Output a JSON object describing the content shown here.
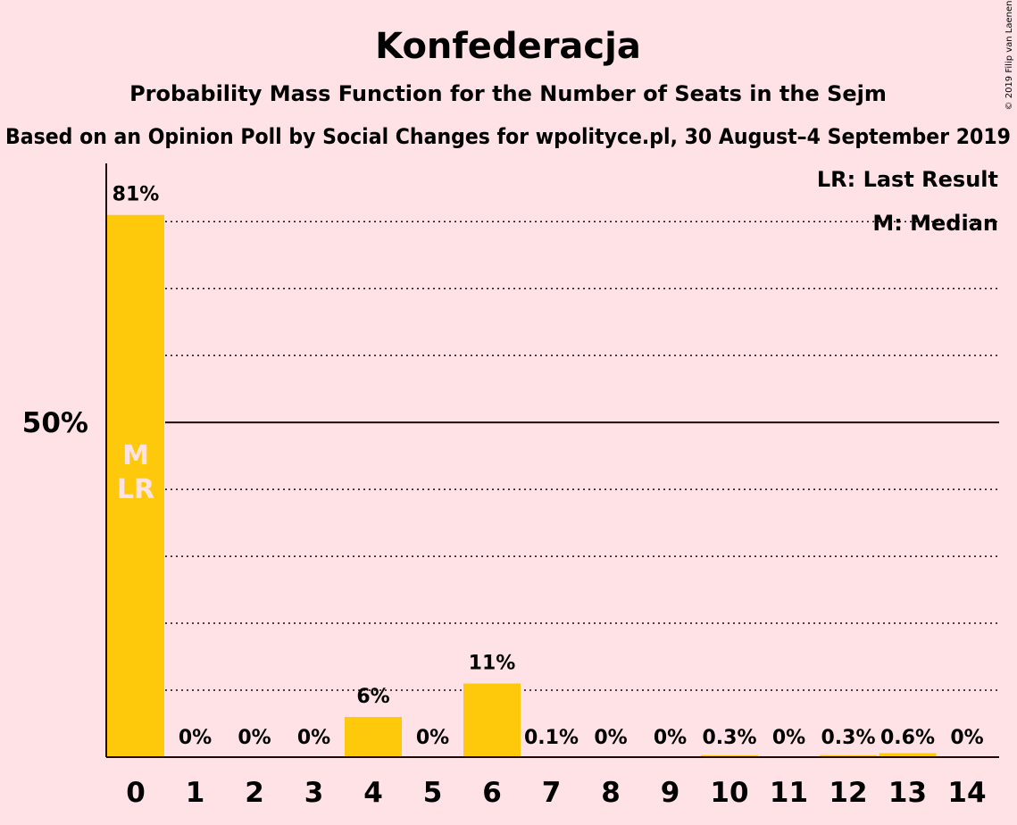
{
  "title": "Konfederacja",
  "subtitle1": "Probability Mass Function for the Number of Seats in the Sejm",
  "subtitle2": "Based on an Opinion Poll by Social Changes for wpolityce.pl, 30 August–4 September 2019",
  "copyright": "© 2019 Filip van Laenen",
  "legend": {
    "last_result": "LR: Last Result",
    "median": "M: Median"
  },
  "colors": {
    "background": "#ffe2e5",
    "bar": "#ffc90b",
    "text": "#1c0a0c"
  },
  "chart_data": {
    "type": "bar",
    "categories": [
      "0",
      "1",
      "2",
      "3",
      "4",
      "5",
      "6",
      "7",
      "8",
      "9",
      "10",
      "11",
      "12",
      "13",
      "14"
    ],
    "values": [
      81,
      0,
      0,
      0,
      6,
      0,
      11,
      0.1,
      0,
      0,
      0.3,
      0,
      0.3,
      0.6,
      0
    ],
    "value_labels": [
      "81%",
      "0%",
      "0%",
      "0%",
      "6%",
      "0%",
      "11%",
      "0.1%",
      "0%",
      "0%",
      "0.3%",
      "0%",
      "0.3%",
      "0.6%",
      "0%"
    ],
    "ylim": [
      0,
      88.7
    ],
    "y_tick_label": "50%",
    "y_tick_value": 50,
    "gridlines": [
      10,
      20,
      30,
      40,
      60,
      70,
      80
    ],
    "gridlines_style": "dotted",
    "median_category": "0",
    "last_result_category": "0",
    "median_marker": "M",
    "last_result_marker": "LR",
    "legend_position": "top-right"
  }
}
